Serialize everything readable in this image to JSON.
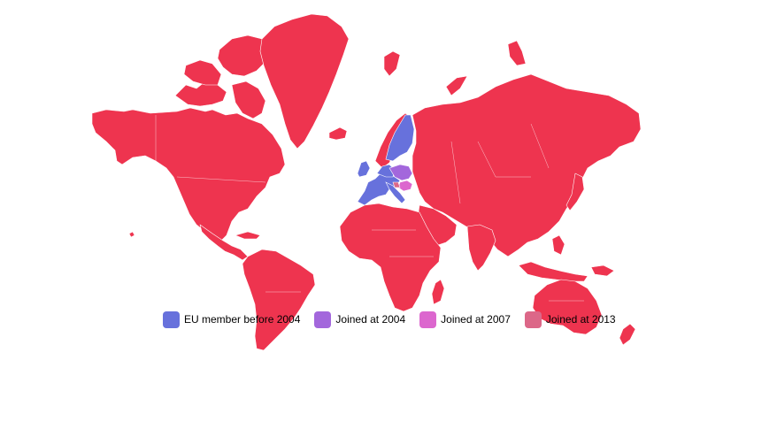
{
  "legend": {
    "items": [
      {
        "label": "EU member before 2004",
        "color": "#6771dc"
      },
      {
        "label": "Joined at 2004",
        "color": "#a367dc"
      },
      {
        "label": "Joined at 2007",
        "color": "#dc67ce"
      },
      {
        "label": "Joined at 2013",
        "color": "#dc6788"
      }
    ]
  },
  "colors": {
    "non_member": "#ee344f",
    "background": "#ffffff"
  }
}
